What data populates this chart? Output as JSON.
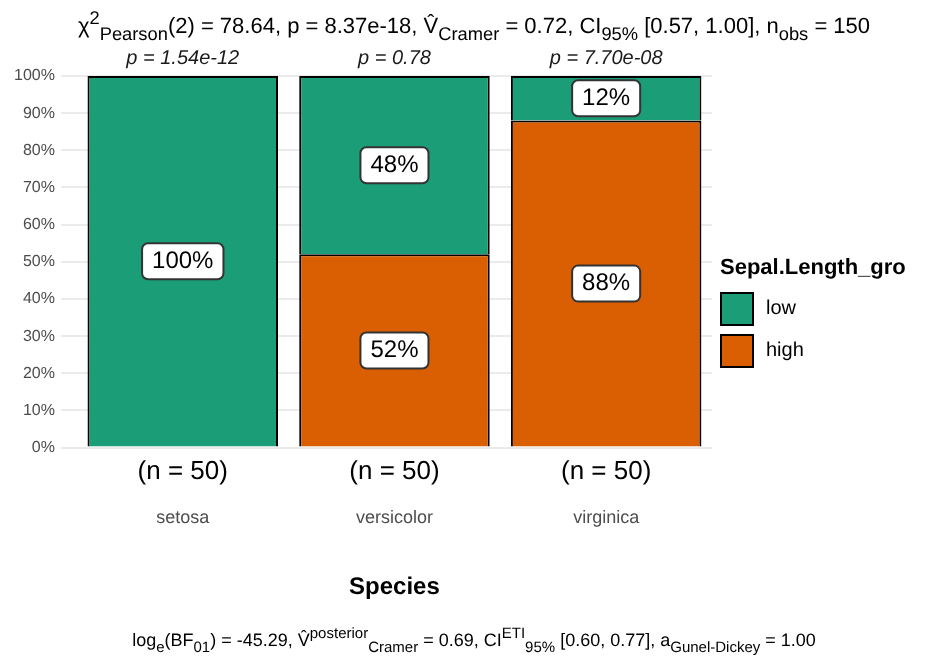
{
  "chart_data": {
    "type": "bar",
    "title": "χ$^{2}$$_{Pearson}$(2) = 78.64, p = 8.37e-18, V̂$_{Cramer}$ = 0.72, CI$_{95%}$ [0.57, 1.00], n$_{obs}$ = 150",
    "xlabel": "Species",
    "legend_title": "Sepal.Length_gro",
    "categories": [
      "setosa",
      "versicolor",
      "virginica"
    ],
    "stacked": true,
    "series": [
      {
        "name": "high",
        "color": "#d95f02",
        "values": [
          0,
          52,
          88
        ],
        "value_labels": [
          null,
          "52%",
          "88%"
        ]
      },
      {
        "name": "low",
        "color": "#1b9e77",
        "values": [
          100,
          48,
          12
        ],
        "value_labels": [
          "100%",
          "48%",
          "12%"
        ]
      }
    ],
    "ylim": [
      0,
      100
    ],
    "yticks": [
      {
        "value": 0,
        "label": "0%"
      },
      {
        "value": 10,
        "label": "10%"
      },
      {
        "value": 20,
        "label": "20%"
      },
      {
        "value": 30,
        "label": "30%"
      },
      {
        "value": 40,
        "label": "40%"
      },
      {
        "value": 50,
        "label": "50%"
      },
      {
        "value": 60,
        "label": "60%"
      },
      {
        "value": 70,
        "label": "70%"
      },
      {
        "value": 80,
        "label": "80%"
      },
      {
        "value": 90,
        "label": "90%"
      },
      {
        "value": 100,
        "label": "100%"
      }
    ],
    "grid": "y",
    "legend": "right",
    "annotations": [
      {
        "text": "p = 1.54e-12",
        "x": "setosa",
        "y": 100
      },
      {
        "text": "p = 0.78",
        "x": "versicolor",
        "y": 100
      },
      {
        "text": "p = 7.70e-08",
        "x": "virginica",
        "y": 100
      },
      "(n = 50)",
      "(n = 50)",
      "(n = 50)",
      "log$_{e}$(BF$_{01}$) = -45.29, V̂$^{posterior}$$_{Cramer}$ = 0.69, CI$^{ETI}$$_{95%}$ [0.60, 0.77], a$_{Gunel-Dickey}$ = 1.00"
    ]
  }
}
